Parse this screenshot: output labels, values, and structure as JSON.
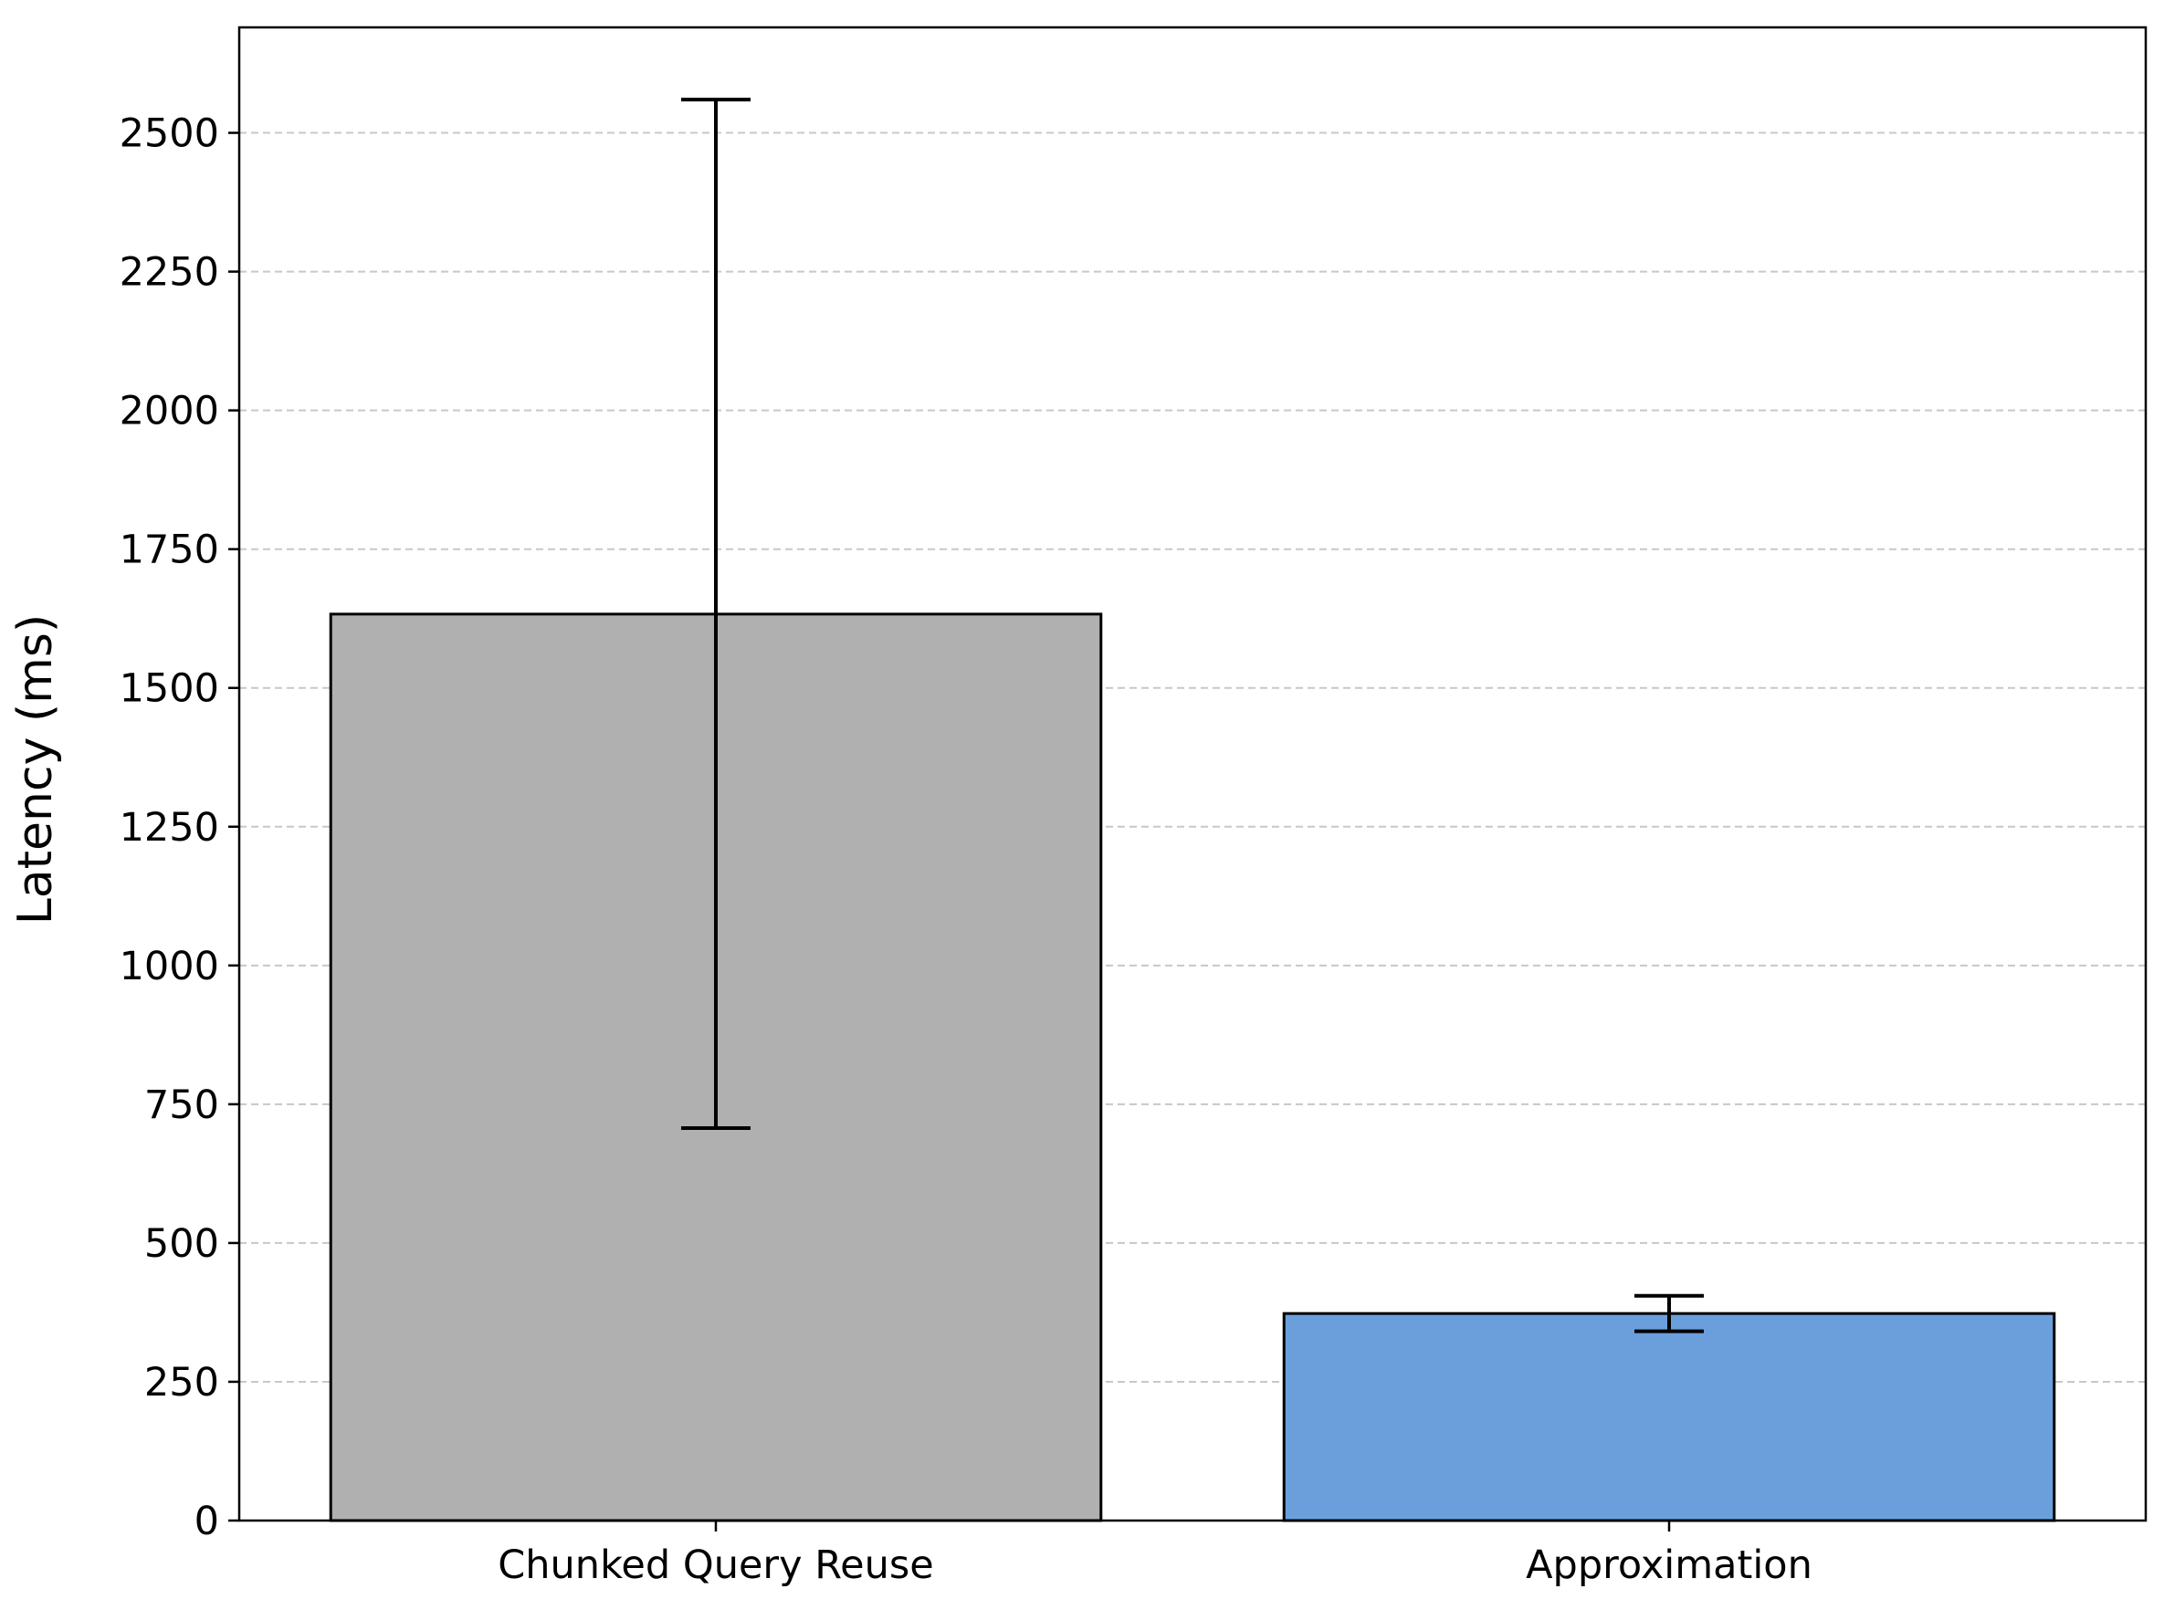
{
  "chart_data": {
    "type": "bar",
    "title": "",
    "xlabel": "",
    "ylabel": "Latency (ms)",
    "categories": [
      "Chunked Query Reuse",
      "Approximation"
    ],
    "values": [
      1633,
      373
    ],
    "error_low": [
      707,
      341
    ],
    "error_high": [
      2560,
      405
    ],
    "bar_colors": [
      "#b0b0b0",
      "#6b9fdc"
    ],
    "bar_edge_color": "#000000",
    "ylim": [
      0,
      2690
    ],
    "yticks": [
      0,
      250,
      500,
      750,
      1000,
      1250,
      1500,
      1750,
      2000,
      2250,
      2500
    ],
    "ytick_labels": [
      "0",
      "250",
      "500",
      "750",
      "1000",
      "1250",
      "1500",
      "1750",
      "2000",
      "2250",
      "2500"
    ],
    "grid": "y-dashed",
    "grid_color": "#c8c8c8",
    "legend": "none"
  }
}
